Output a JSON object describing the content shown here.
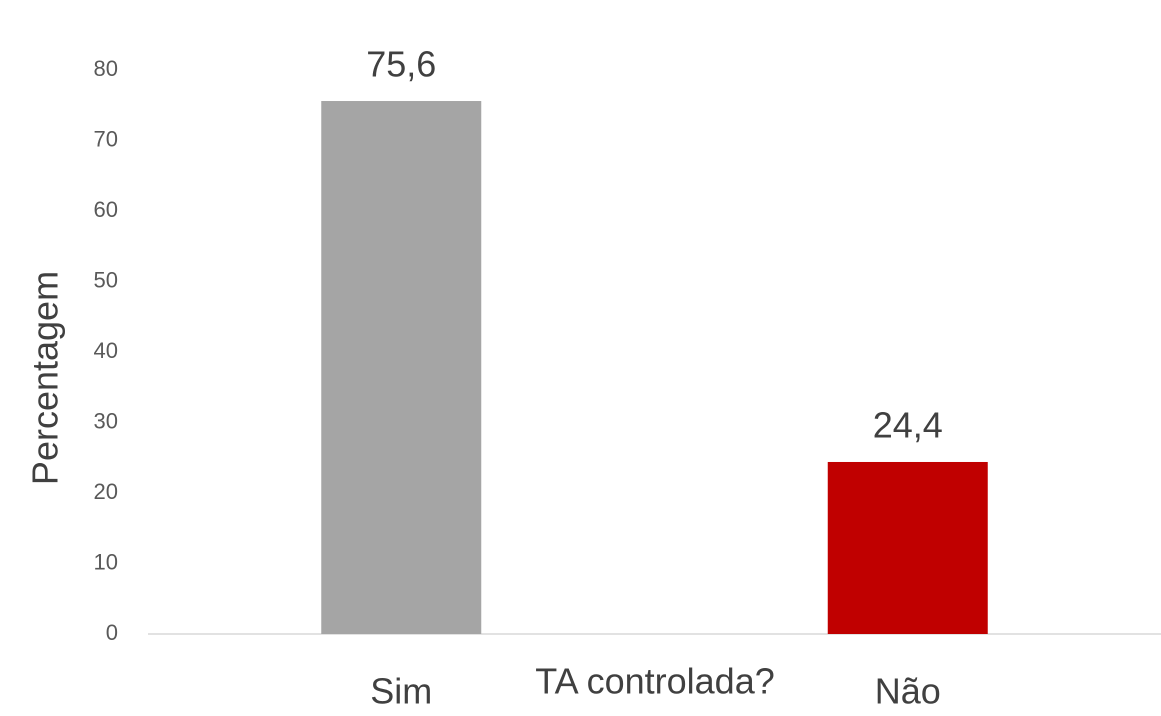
{
  "chart_data": {
    "type": "bar",
    "x_label": "TA controlada?",
    "y_label": "Percentagem",
    "categories": [
      "Sim",
      "Não"
    ],
    "values": [
      75.6,
      24.4
    ],
    "value_labels": [
      "75,6",
      "24,4"
    ],
    "colors": [
      "#a5a5a5",
      "#c00000"
    ],
    "ylim": [
      0,
      80
    ],
    "yticks": [
      0,
      10,
      20,
      30,
      40,
      50,
      60,
      70,
      80
    ],
    "grid": false
  }
}
